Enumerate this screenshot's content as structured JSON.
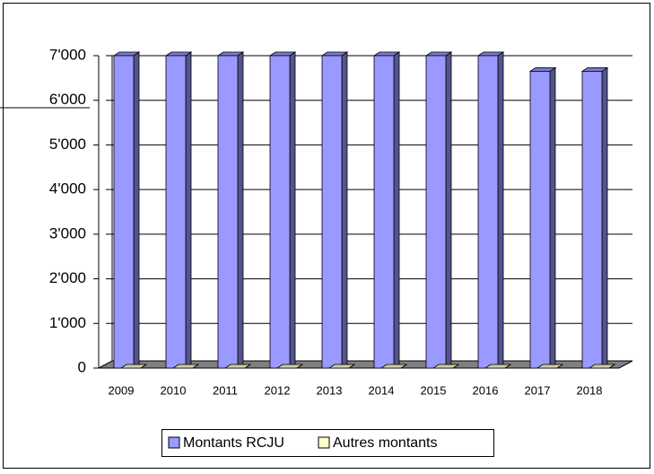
{
  "chart_data": {
    "type": "bar3d",
    "categories": [
      "2009",
      "2010",
      "2011",
      "2012",
      "2013",
      "2014",
      "2015",
      "2016",
      "2017",
      "2018"
    ],
    "series": [
      {
        "name": "Montants RCJU",
        "color": "#9999ff",
        "values": [
          7000,
          7000,
          7000,
          7000,
          7000,
          7000,
          7000,
          7000,
          6650,
          6650
        ]
      },
      {
        "name": "Autres montants",
        "color": "#ffffcc",
        "values": [
          0,
          0,
          0,
          0,
          0,
          0,
          0,
          0,
          0,
          0
        ]
      }
    ],
    "ylim": [
      0,
      7000
    ],
    "yticks": [
      0,
      {
        "value": 1000,
        "label": "1'000"
      },
      {
        "value": 2000,
        "label": "2'000"
      },
      {
        "value": 3000,
        "label": "3'000"
      },
      {
        "value": 4000,
        "label": "4'000"
      },
      {
        "value": 5000,
        "label": "5'000"
      },
      {
        "value": 6000,
        "label": "6'000"
      },
      {
        "value": 7000,
        "label": "7'000"
      }
    ],
    "grid": true,
    "legend": "bottom"
  }
}
